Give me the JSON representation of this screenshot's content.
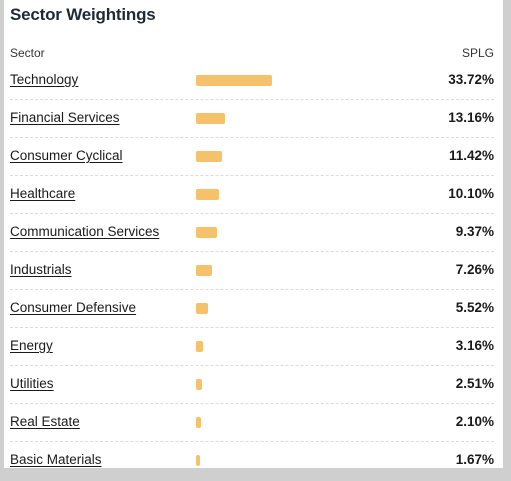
{
  "widget": {
    "title": "Sector Weightings",
    "col_sector": "Sector",
    "col_fund": "SPLG",
    "bar_color": "#f5c26b"
  },
  "sectors": [
    {
      "label": "Technology",
      "value": "33.72%",
      "weight": 33.72
    },
    {
      "label": "Financial Services",
      "value": "13.16%",
      "weight": 13.16
    },
    {
      "label": "Consumer Cyclical",
      "value": "11.42%",
      "weight": 11.42
    },
    {
      "label": "Healthcare",
      "value": "10.10%",
      "weight": 10.1
    },
    {
      "label": "Communication Services",
      "value": "9.37%",
      "weight": 9.37
    },
    {
      "label": "Industrials",
      "value": "7.26%",
      "weight": 7.26
    },
    {
      "label": "Consumer Defensive",
      "value": "5.52%",
      "weight": 5.52
    },
    {
      "label": "Energy",
      "value": "3.16%",
      "weight": 3.16
    },
    {
      "label": "Utilities",
      "value": "2.51%",
      "weight": 2.51
    },
    {
      "label": "Real Estate",
      "value": "2.10%",
      "weight": 2.1
    },
    {
      "label": "Basic Materials",
      "value": "1.67%",
      "weight": 1.67
    }
  ]
}
